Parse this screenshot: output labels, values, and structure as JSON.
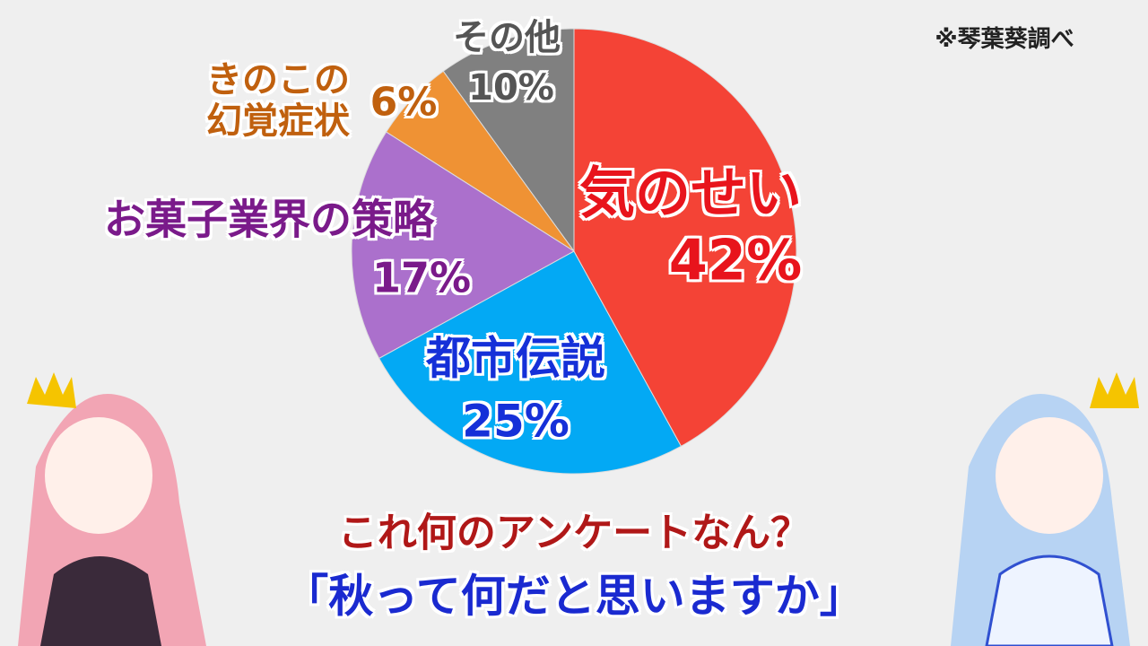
{
  "chart_data": {
    "type": "pie",
    "categories": [
      "気のせい",
      "都市伝説",
      "お菓子業界の策略",
      "きのこの幻覚症状",
      "その他"
    ],
    "values": [
      42,
      25,
      17,
      6,
      10
    ],
    "value_labels": [
      "42%",
      "25%",
      "17%",
      "6%",
      "10%"
    ],
    "colors": [
      "#f44336",
      "#03a9f4",
      "#ab70cc",
      "#ef9234",
      "#808080"
    ],
    "note": "※琴葉葵調べ",
    "caption": "これ何のアンケートなん？",
    "subtitle": "「秋って何だと思いますか」"
  }
}
